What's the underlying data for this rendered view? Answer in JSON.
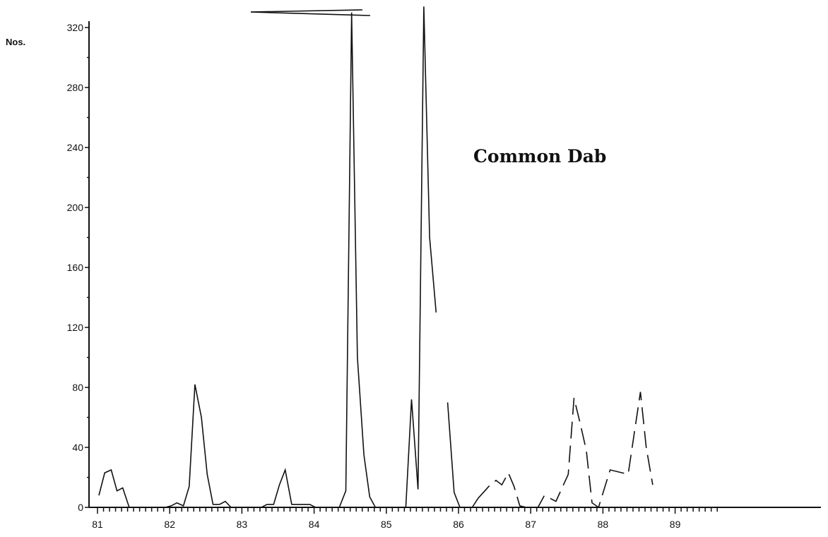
{
  "chart_data": {
    "type": "line",
    "title": "Common Dab",
    "ylabel": "Nos.",
    "xlabel": "",
    "xlim": [
      81,
      89.6
    ],
    "ylim": [
      0,
      320
    ],
    "x_ticks": [
      "81",
      "82",
      "83",
      "84",
      "85",
      "86",
      "87",
      "88",
      "89"
    ],
    "y_ticks": [
      "0",
      "40",
      "80",
      "120",
      "160",
      "200",
      "240",
      "280",
      "320"
    ],
    "grid": false,
    "legend": "none",
    "series": [
      {
        "style": "solid",
        "points": [
          [
            81.0,
            8
          ],
          [
            81.08,
            23
          ],
          [
            81.17,
            25
          ],
          [
            81.25,
            11
          ],
          [
            81.33,
            13
          ],
          [
            81.42,
            0
          ],
          [
            81.5,
            0
          ],
          [
            81.58,
            0
          ],
          [
            81.67,
            0
          ],
          [
            81.75,
            0
          ],
          [
            81.83,
            0
          ],
          [
            81.92,
            0
          ],
          [
            82.0,
            1
          ],
          [
            82.08,
            3
          ],
          [
            82.17,
            1
          ],
          [
            82.25,
            14
          ],
          [
            82.33,
            82
          ],
          [
            82.42,
            60
          ],
          [
            82.5,
            22
          ],
          [
            82.58,
            2
          ],
          [
            82.67,
            2
          ],
          [
            82.75,
            4
          ],
          [
            82.83,
            0
          ],
          [
            82.92,
            0
          ],
          [
            83.0,
            0
          ],
          [
            83.08,
            0
          ],
          [
            83.17,
            0
          ],
          [
            83.25,
            0
          ],
          [
            83.33,
            2
          ],
          [
            83.42,
            2
          ],
          [
            83.5,
            15
          ],
          [
            83.58,
            25
          ],
          [
            83.67,
            2
          ],
          [
            83.75,
            2
          ],
          [
            83.83,
            2
          ],
          [
            83.92,
            2
          ],
          [
            84.0,
            0
          ],
          [
            84.08,
            0
          ],
          [
            84.17,
            0
          ],
          [
            84.25,
            0
          ],
          [
            84.33,
            0
          ],
          [
            84.42,
            11
          ],
          [
            84.5,
            330
          ],
          [
            84.58,
            100
          ],
          [
            84.67,
            35
          ],
          [
            84.75,
            7
          ],
          [
            84.83,
            0
          ],
          [
            84.92,
            0
          ],
          [
            85.0,
            0
          ],
          [
            85.08,
            0
          ],
          [
            85.17,
            0
          ],
          [
            85.25,
            0
          ],
          [
            85.33,
            72
          ],
          [
            85.42,
            12
          ],
          [
            85.5,
            334
          ],
          [
            85.58,
            180
          ],
          [
            85.67,
            130
          ]
        ]
      },
      {
        "style": "solid",
        "points": [
          [
            85.83,
            70
          ],
          [
            85.92,
            10
          ],
          [
            86.0,
            0
          ],
          [
            86.08,
            0
          ],
          [
            86.17,
            0
          ],
          [
            86.25,
            6
          ]
        ]
      },
      {
        "style": "dashed",
        "points": [
          [
            86.25,
            6
          ],
          [
            86.42,
            15
          ],
          [
            86.5,
            18
          ],
          [
            86.58,
            15
          ],
          [
            86.67,
            23
          ],
          [
            86.75,
            14
          ],
          [
            86.83,
            1
          ],
          [
            86.92,
            0
          ],
          [
            87.0,
            0
          ],
          [
            87.08,
            0
          ],
          [
            87.17,
            8
          ],
          [
            87.33,
            4
          ],
          [
            87.5,
            22
          ],
          [
            87.58,
            73
          ],
          [
            87.67,
            55
          ],
          [
            87.75,
            38
          ],
          [
            87.83,
            3
          ],
          [
            87.92,
            0
          ],
          [
            88.08,
            25
          ],
          [
            88.25,
            23
          ],
          [
            88.33,
            22
          ],
          [
            88.5,
            77
          ],
          [
            88.58,
            40
          ],
          [
            88.67,
            15
          ]
        ]
      }
    ]
  }
}
